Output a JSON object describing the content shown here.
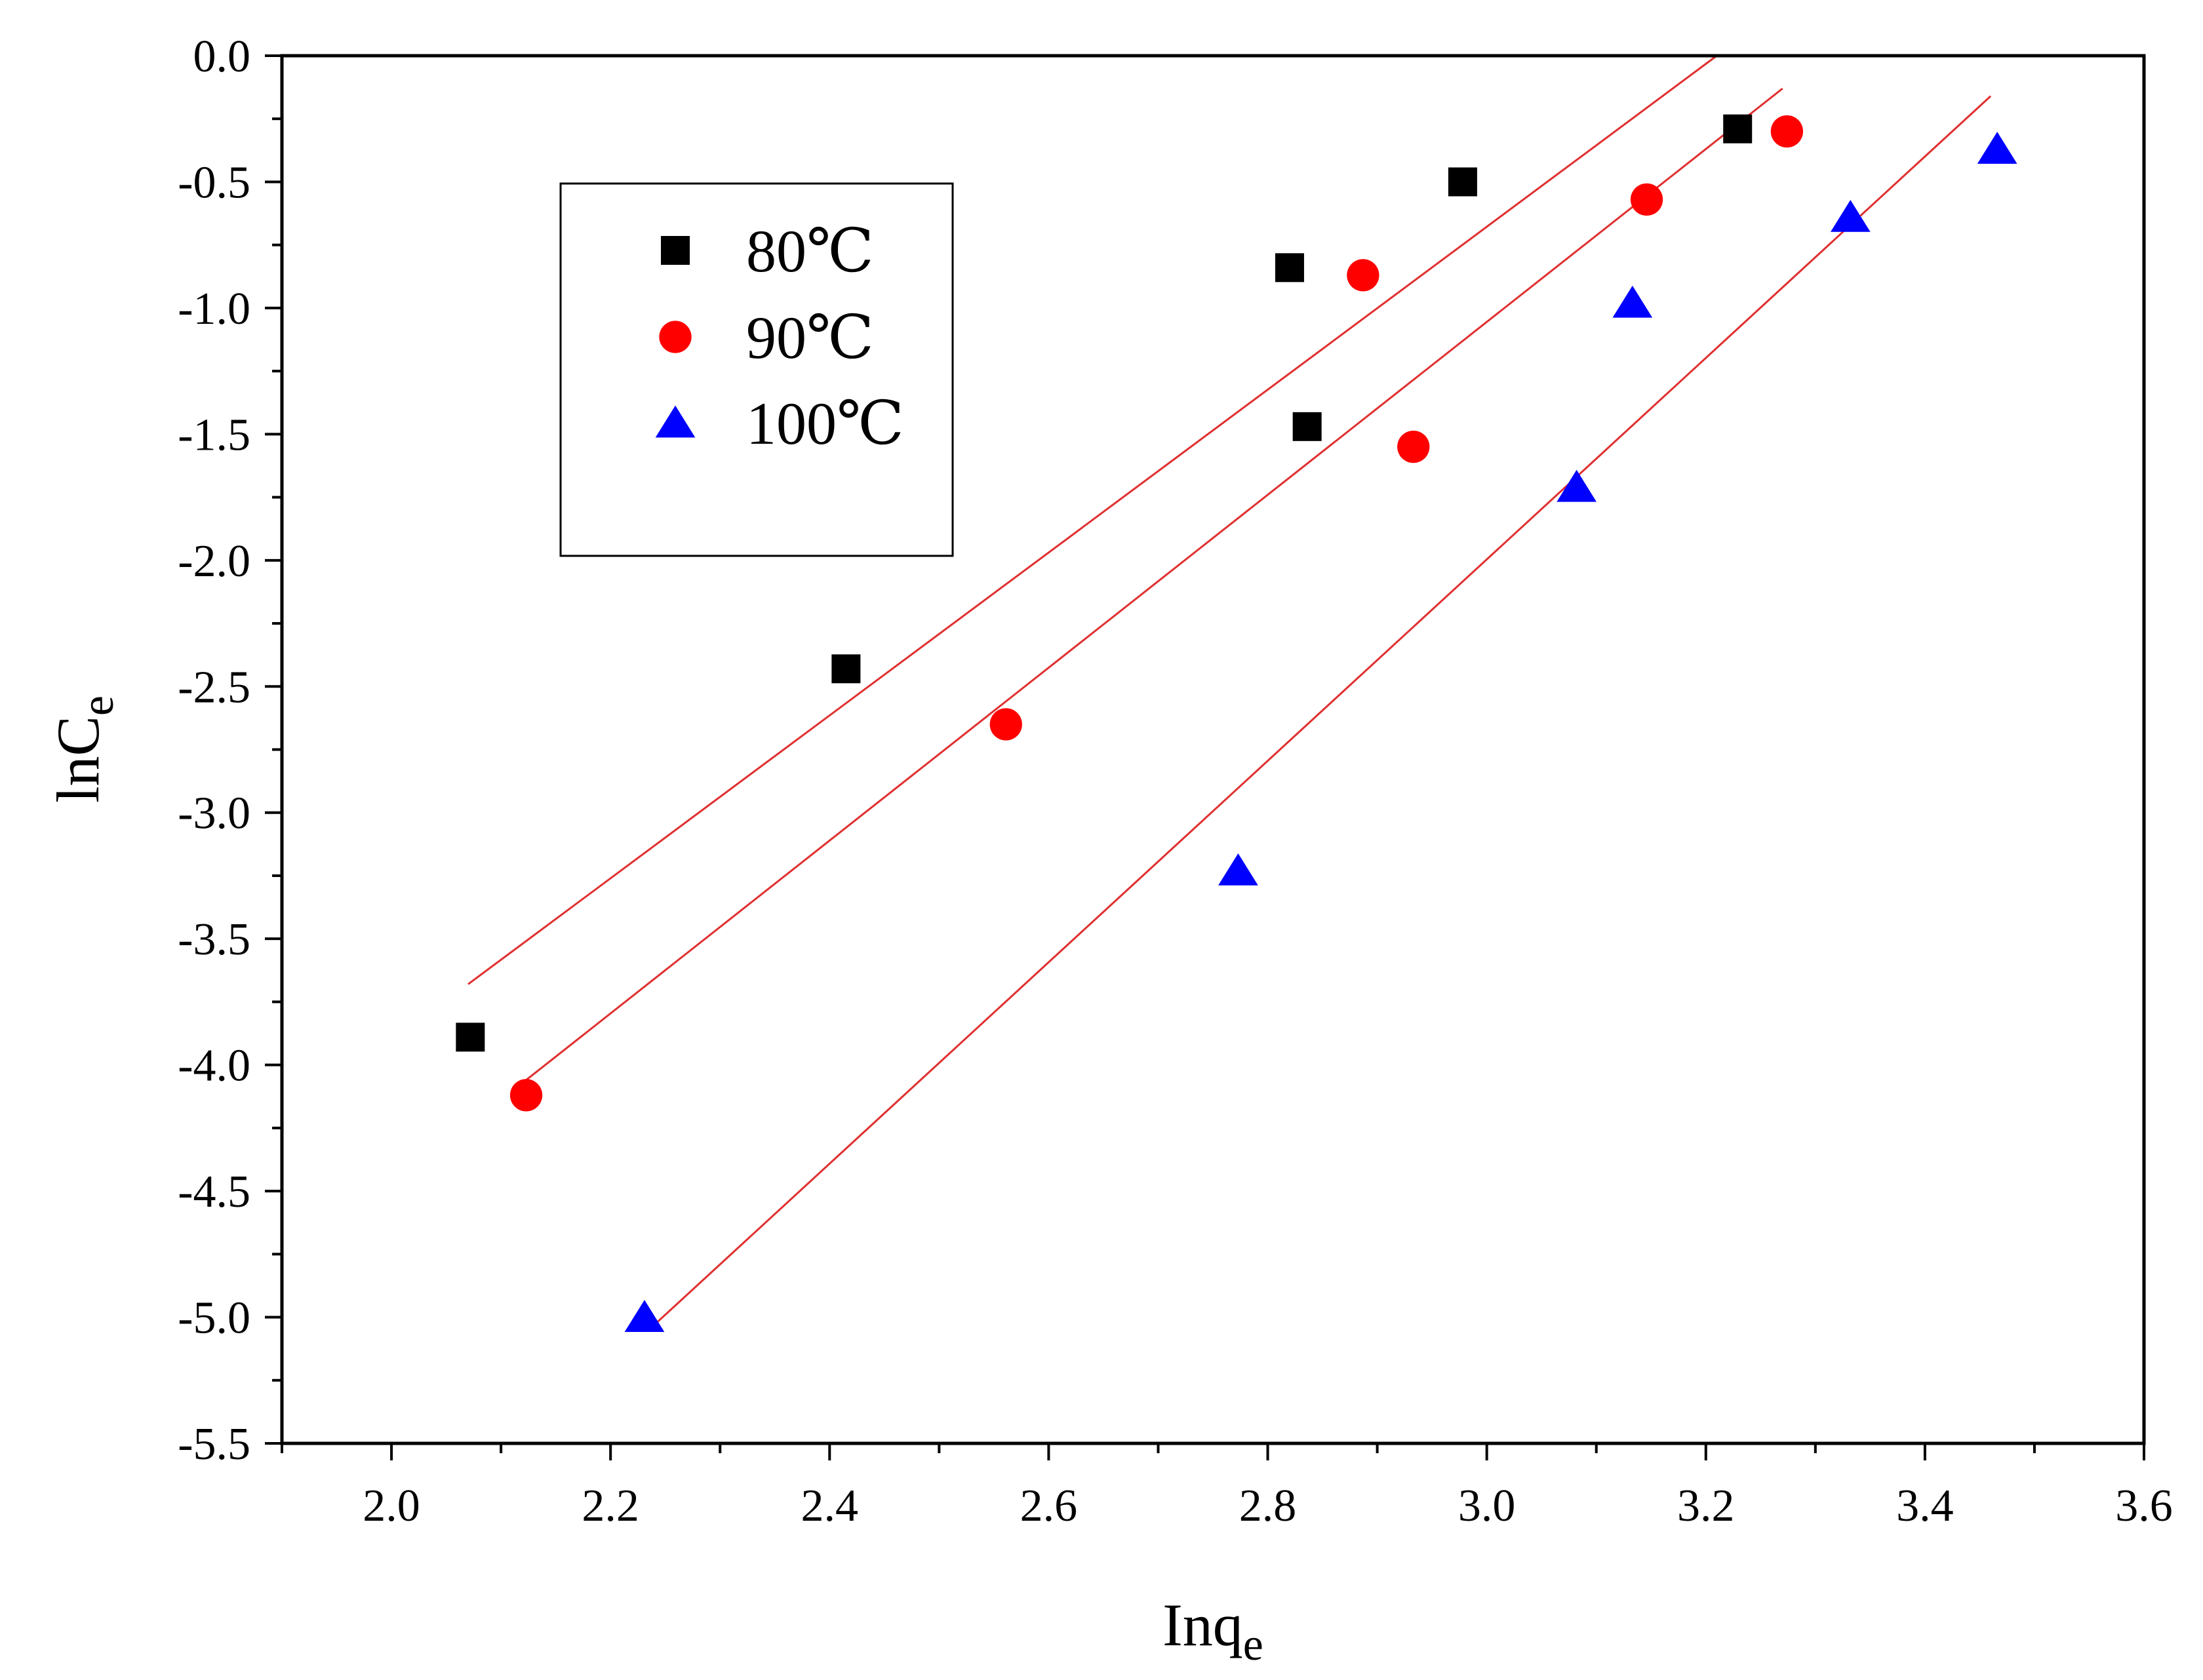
{
  "chart_data": {
    "type": "scatter",
    "title": "",
    "xlabel": {
      "main": "Inq",
      "sub": "e"
    },
    "ylabel": {
      "main": "lnC",
      "sub": "e"
    },
    "xlim": [
      1.9,
      3.6
    ],
    "ylim": [
      -5.5,
      0.0
    ],
    "xticks": [
      2.0,
      2.2,
      2.4,
      2.6,
      2.8,
      3.0,
      3.2,
      3.4,
      3.6
    ],
    "xtick_labels": [
      "2.0",
      "2.2",
      "2.4",
      "2.6",
      "2.8",
      "3.0",
      "3.2",
      "3.4",
      "3.6"
    ],
    "yticks": [
      0.0,
      -0.5,
      -1.0,
      -1.5,
      -2.0,
      -2.5,
      -3.0,
      -3.5,
      -4.0,
      -4.5,
      -5.0,
      -5.5
    ],
    "ytick_labels": [
      "0.0",
      "-0.5",
      "-1.0",
      "-1.5",
      "-2.0",
      "-2.5",
      "-3.0",
      "-3.5",
      "-4.0",
      "-4.5",
      "-5.0",
      "-5.5"
    ],
    "grid": false,
    "legend_position": "top-left",
    "series": [
      {
        "name": "80℃",
        "marker": "square",
        "color": "#000000",
        "points": [
          [
            2.072,
            -3.89
          ],
          [
            2.415,
            -2.43
          ],
          [
            2.82,
            -0.84
          ],
          [
            2.836,
            -1.47
          ],
          [
            2.978,
            -0.5
          ],
          [
            3.229,
            -0.29
          ]
        ],
        "fit": {
          "x": [
            2.07,
            3.21
          ],
          "y": [
            -3.68,
            0.0
          ]
        }
      },
      {
        "name": "90℃",
        "marker": "circle",
        "color": "#ff0000",
        "points": [
          [
            2.123,
            -4.12
          ],
          [
            2.561,
            -2.65
          ],
          [
            2.887,
            -0.87
          ],
          [
            2.933,
            -1.55
          ],
          [
            3.146,
            -0.57
          ],
          [
            3.274,
            -0.3
          ]
        ],
        "fit": {
          "x": [
            2.12,
            3.27
          ],
          "y": [
            -4.07,
            -0.13
          ]
        }
      },
      {
        "name": "100℃",
        "marker": "triangle",
        "color": "#0000ff",
        "points": [
          [
            2.231,
            -5.0
          ],
          [
            2.773,
            -3.23
          ],
          [
            3.082,
            -1.71
          ],
          [
            3.133,
            -0.98
          ],
          [
            3.332,
            -0.64
          ],
          [
            3.466,
            -0.37
          ]
        ],
        "fit": {
          "x": [
            2.24,
            3.46
          ],
          "y": [
            -5.03,
            -0.16
          ]
        }
      }
    ],
    "fit_line_color": "#e03030"
  }
}
